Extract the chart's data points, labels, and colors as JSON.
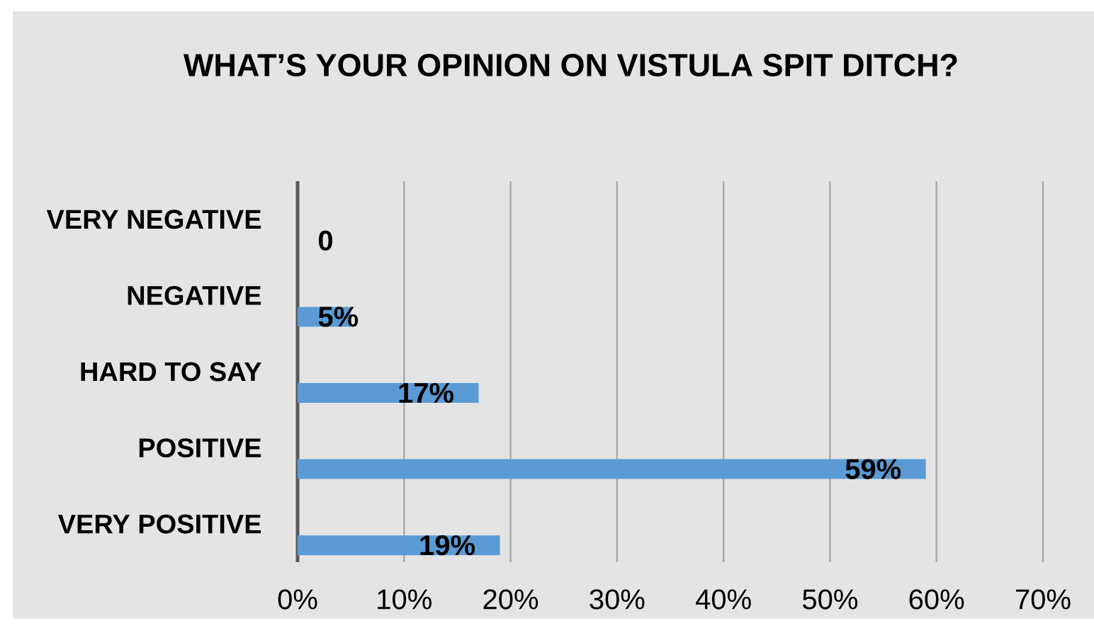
{
  "chart_data": {
    "type": "bar",
    "orientation": "horizontal",
    "title": "WHAT’S YOUR OPINION ON VISTULA SPIT DITCH?",
    "categories": [
      "VERY NEGATIVE",
      "NEGATIVE",
      "HARD TO SAY",
      "POSITIVE",
      "VERY POSITIVE"
    ],
    "values": [
      0,
      5,
      17,
      59,
      19
    ],
    "value_labels": [
      "0",
      "5%",
      "17%",
      "59%",
      "19%"
    ],
    "color": "#5b9bd5",
    "xlim": [
      0,
      70
    ],
    "xticks": [
      {
        "value": 0,
        "label": "0%"
      },
      {
        "value": 10,
        "label": "10%"
      },
      {
        "value": 20,
        "label": "20%"
      },
      {
        "value": 30,
        "label": "30%"
      },
      {
        "value": 40,
        "label": "40%"
      },
      {
        "value": 50,
        "label": "50%"
      },
      {
        "value": 60,
        "label": "60%"
      },
      {
        "value": 70,
        "label": "70%"
      }
    ],
    "grid": "x"
  }
}
